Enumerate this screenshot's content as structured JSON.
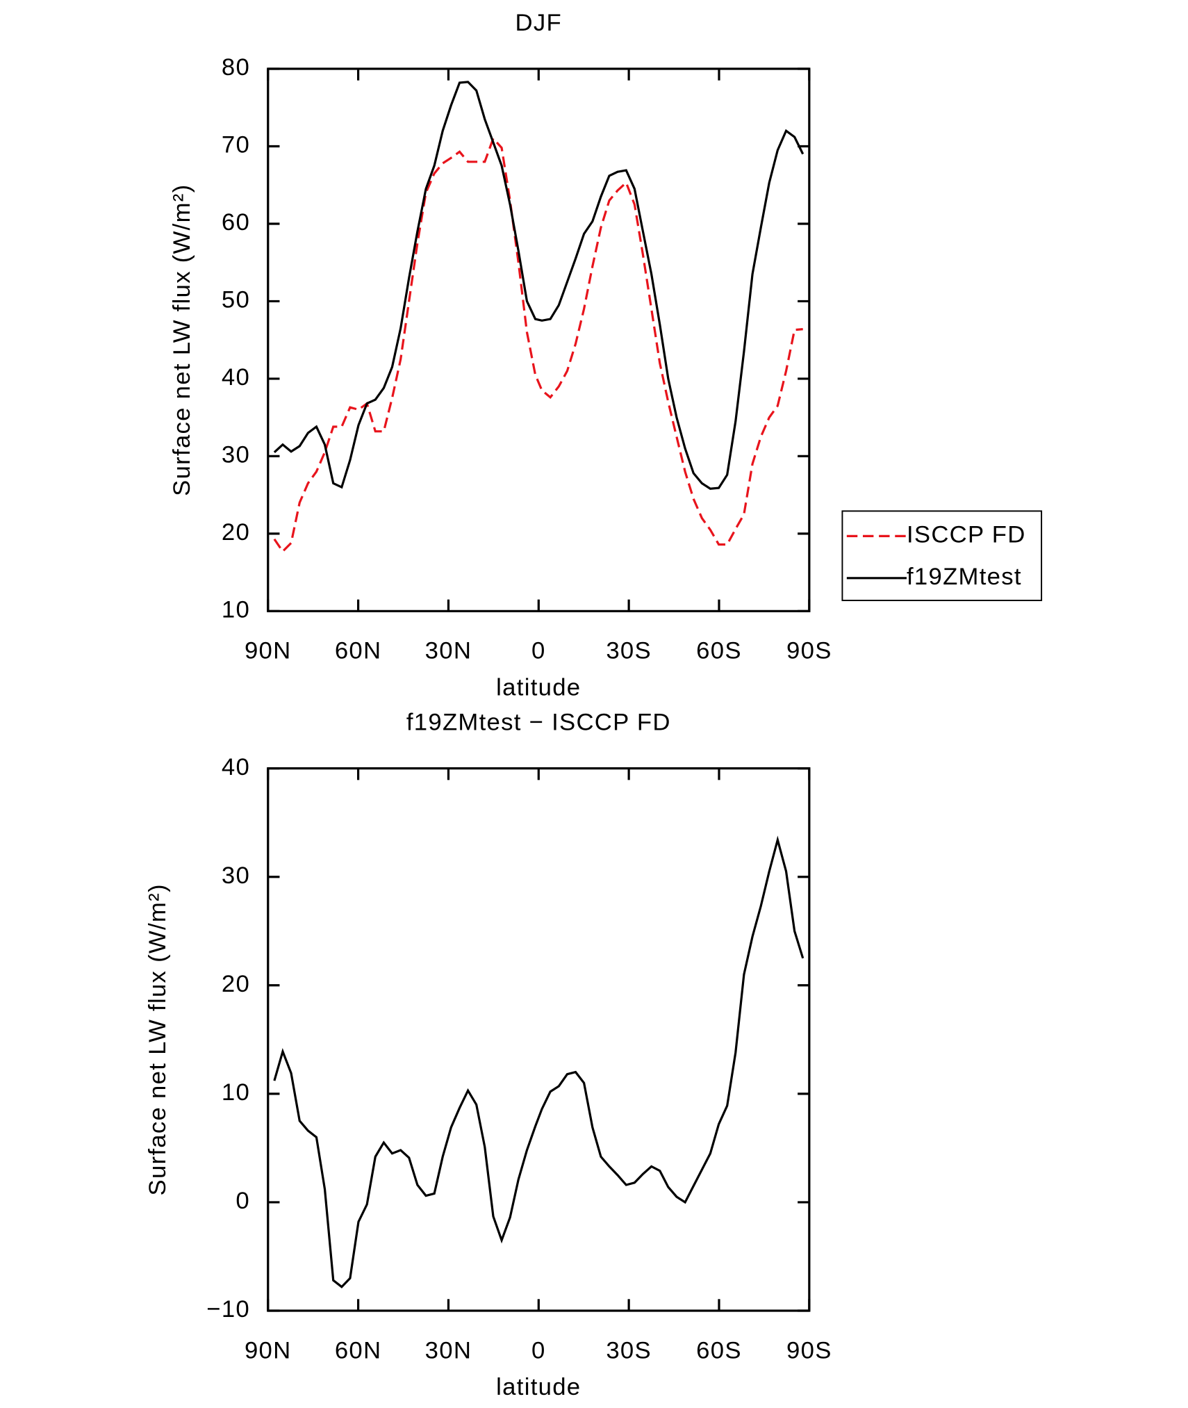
{
  "chart_data": [
    {
      "type": "line",
      "title": "DJF",
      "xlabel": "latitude",
      "ylabel": "Surface net LW flux (W/m²)",
      "x": [
        87.9,
        85.1,
        82.3,
        79.5,
        76.7,
        73.9,
        71.1,
        68.3,
        65.5,
        62.7,
        59.9,
        57.1,
        54.3,
        51.5,
        48.7,
        45.9,
        43.1,
        40.3,
        37.5,
        34.7,
        31.9,
        29.1,
        26.3,
        23.5,
        20.7,
        17.9,
        15.1,
        12.3,
        9.5,
        6.7,
        3.9,
        1.1,
        -1.1,
        -3.9,
        -6.7,
        -9.5,
        -12.3,
        -15.1,
        -17.9,
        -20.7,
        -23.5,
        -26.3,
        -29.1,
        -31.9,
        -34.7,
        -37.5,
        -40.3,
        -43.1,
        -45.9,
        -48.7,
        -51.5,
        -54.3,
        -57.1,
        -59.9,
        -62.7,
        -65.5,
        -68.3,
        -71.1,
        -73.9,
        -76.7,
        -79.5,
        -82.3,
        -85.1,
        -87.9
      ],
      "series": [
        {
          "name": "ISCCP FD",
          "color": "#e8141c",
          "dash": true,
          "values": [
            19.3,
            17.7,
            18.8,
            24,
            26.5,
            28,
            30.5,
            33.8,
            33.8,
            36.3,
            36,
            36.8,
            33.2,
            33.2,
            37.5,
            42.5,
            50,
            57.5,
            64,
            66.5,
            67.8,
            68.5,
            69.3,
            68,
            68,
            68,
            71,
            69.8,
            63,
            55,
            46,
            40.5,
            38.5,
            37.6,
            39,
            41,
            44.5,
            49,
            54.5,
            59.5,
            63,
            64.3,
            65.3,
            62.5,
            56,
            49,
            42,
            37,
            32.5,
            28,
            24.5,
            22,
            20.5,
            18.6,
            18.6,
            20.6,
            22.5,
            29,
            32.5,
            35,
            36.5,
            41,
            46.3,
            46.4
          ]
        },
        {
          "name": "f19ZMtest",
          "color": "#000000",
          "dash": false,
          "values": [
            30.5,
            31.5,
            30.6,
            31.3,
            33,
            33.8,
            31.5,
            26.5,
            26,
            29.5,
            34,
            36.8,
            37.3,
            38.8,
            41.5,
            46.5,
            53,
            59,
            64.5,
            67.5,
            72,
            75.3,
            78.2,
            78.3,
            77.2,
            73.5,
            70.5,
            67.5,
            62.5,
            56.5,
            50,
            47.7,
            47.5,
            47.7,
            49.5,
            52.5,
            55.5,
            58.7,
            60.3,
            63.5,
            66.2,
            66.7,
            66.9,
            64.5,
            59,
            53.5,
            47,
            40,
            35,
            31,
            27.8,
            26.5,
            25.8,
            25.9,
            27.6,
            34.5,
            43.5,
            53.5,
            59.5,
            65.3,
            69.5,
            72,
            71.2,
            69
          ]
        }
      ],
      "xlim": [
        90,
        -90
      ],
      "xticks": [
        {
          "value": 90,
          "label": "90N"
        },
        {
          "value": 60,
          "label": "60N"
        },
        {
          "value": 30,
          "label": "30N"
        },
        0,
        {
          "value": -30,
          "label": "30S"
        },
        {
          "value": -60,
          "label": "60S"
        },
        {
          "value": -90,
          "label": "90S"
        }
      ],
      "ylim": [
        10,
        80
      ],
      "yticks": [
        10,
        20,
        30,
        40,
        50,
        60,
        70,
        80
      ],
      "legend": "right"
    },
    {
      "type": "line",
      "title": "f19ZMtest − ISCCP FD",
      "xlabel": "latitude",
      "ylabel": "Surface net LW flux (W/m²)",
      "x": [
        87.9,
        85.1,
        82.3,
        79.5,
        76.7,
        73.9,
        71.1,
        68.3,
        65.5,
        62.7,
        59.9,
        57.1,
        54.3,
        51.5,
        48.7,
        45.9,
        43.1,
        40.3,
        37.5,
        34.7,
        31.9,
        29.1,
        26.3,
        23.5,
        20.7,
        17.9,
        15.1,
        12.3,
        9.5,
        6.7,
        3.9,
        1.1,
        -1.1,
        -3.9,
        -6.7,
        -9.5,
        -12.3,
        -15.1,
        -17.9,
        -20.7,
        -23.5,
        -26.3,
        -29.1,
        -31.9,
        -34.7,
        -37.5,
        -40.3,
        -43.1,
        -45.9,
        -48.7,
        -51.5,
        -54.3,
        -57.1,
        -59.9,
        -62.7,
        -65.5,
        -68.3,
        -71.1,
        -73.9,
        -76.7,
        -79.5,
        -82.3,
        -85.1,
        -87.9
      ],
      "series": [
        {
          "color": "#000000",
          "dash": false,
          "values": [
            11.2,
            13.9,
            11.9,
            7.5,
            6.6,
            6,
            1.2,
            -7.2,
            -7.8,
            -7,
            -1.8,
            -0.2,
            4.2,
            5.5,
            4.5,
            4.8,
            4.1,
            1.6,
            0.6,
            0.8,
            4.2,
            6.9,
            8.7,
            10.3,
            9,
            5.1,
            -1.3,
            -3.5,
            -1.4,
            2.1,
            4.8,
            7,
            8.6,
            10.2,
            10.7,
            11.8,
            12,
            11,
            6.9,
            4.2,
            3.3,
            2.5,
            1.6,
            1.8,
            2.6,
            3.3,
            2.9,
            1.4,
            0.5,
            0,
            1.5,
            3,
            4.5,
            7.2,
            8.9,
            13.8,
            21,
            24.5,
            27.3,
            30.5,
            33.4,
            30.5,
            25,
            22.5
          ]
        }
      ],
      "xlim": [
        90,
        -90
      ],
      "xticks": [
        {
          "value": 90,
          "label": "90N"
        },
        {
          "value": 60,
          "label": "60N"
        },
        {
          "value": 30,
          "label": "30N"
        },
        0,
        {
          "value": -30,
          "label": "30S"
        },
        {
          "value": -60,
          "label": "60S"
        },
        {
          "value": -90,
          "label": "90S"
        }
      ],
      "ylim": [
        -10,
        40
      ],
      "yticks": [
        {
          "value": -10,
          "label": "−10"
        },
        0,
        10,
        20,
        30,
        40
      ]
    }
  ]
}
